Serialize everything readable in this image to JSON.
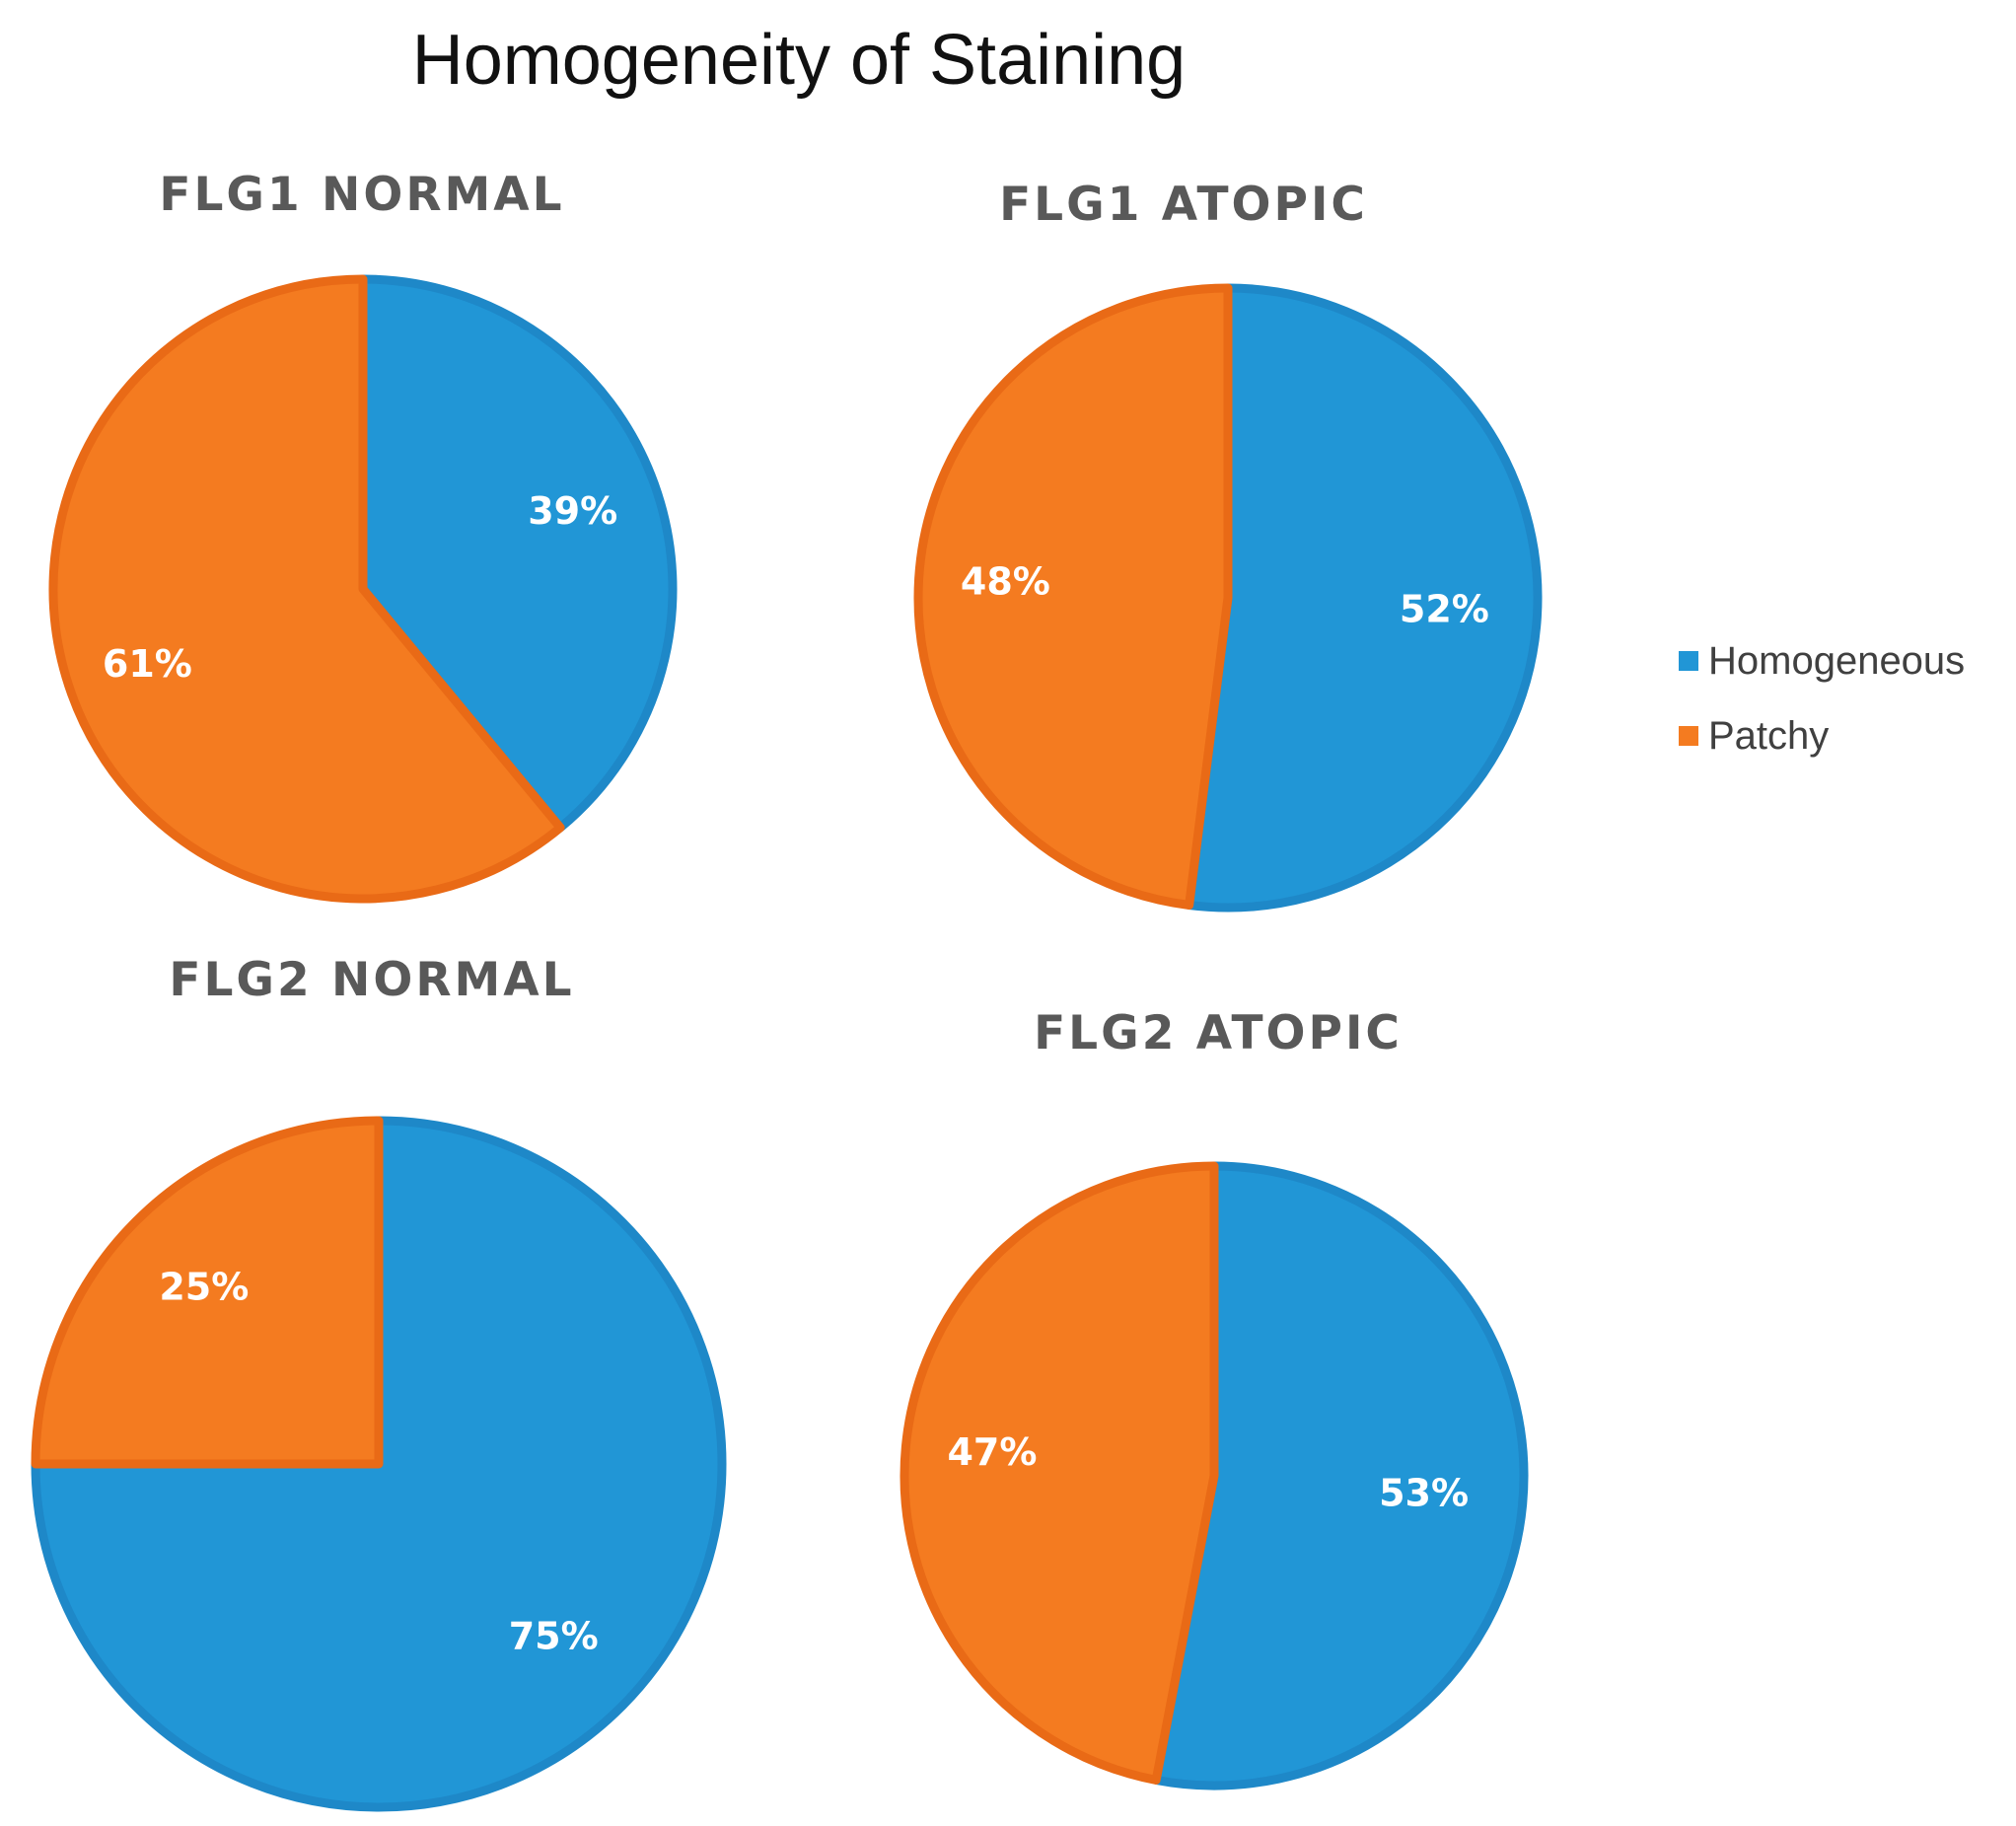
{
  "title": "Homogeneity of Staining",
  "colors": {
    "homogeneous": "#2196D6",
    "patchy": "#F47B20",
    "stroke_homogeneous": "#1E88C8",
    "stroke_patchy": "#E96A16"
  },
  "legend": [
    {
      "label": "Homogeneous",
      "color": "#2196D6"
    },
    {
      "label": "Patchy",
      "color": "#F47B20"
    }
  ],
  "chart_data": [
    {
      "type": "pie",
      "title": "FLG1 NORMAL",
      "categories": [
        "Homogeneous",
        "Patchy"
      ],
      "values": [
        39,
        61
      ],
      "labels": [
        "39%",
        "61%"
      ]
    },
    {
      "type": "pie",
      "title": "FLG1 ATOPIC",
      "categories": [
        "Homogeneous",
        "Patchy"
      ],
      "values": [
        52,
        48
      ],
      "labels": [
        "52%",
        "48%"
      ]
    },
    {
      "type": "pie",
      "title": "FLG2 NORMAL",
      "categories": [
        "Homogeneous",
        "Patchy"
      ],
      "values": [
        75,
        25
      ],
      "labels": [
        "75%",
        "25%"
      ]
    },
    {
      "type": "pie",
      "title": "FLG2 ATOPIC",
      "categories": [
        "Homogeneous",
        "Patchy"
      ],
      "values": [
        53,
        47
      ],
      "labels": [
        "53%",
        "47%"
      ]
    }
  ]
}
